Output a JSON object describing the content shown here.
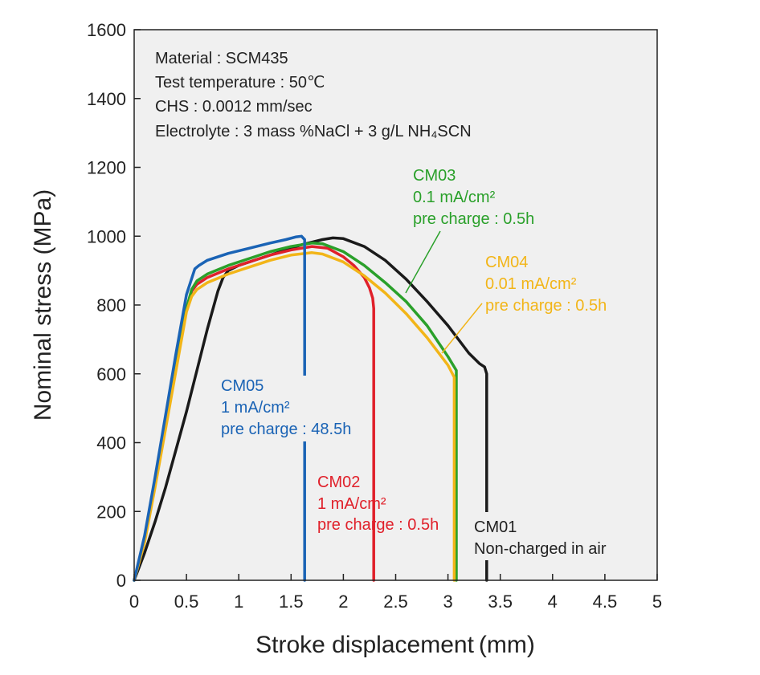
{
  "chart_data": {
    "type": "line",
    "xlabel": "Stroke displacement (mm)",
    "ylabel": "Nominal stress (MPa)",
    "xlim": [
      0,
      5
    ],
    "ylim": [
      0,
      1600
    ],
    "xticks": [
      0,
      0.5,
      1,
      1.5,
      2,
      2.5,
      3,
      3.5,
      4,
      4.5,
      5
    ],
    "xtick_labels": [
      "0",
      "0.5",
      "1",
      "1.5",
      "2",
      "2.5",
      "3",
      "3.5",
      "4",
      "4.5",
      "5"
    ],
    "yticks": [
      0,
      200,
      400,
      600,
      800,
      1000,
      1200,
      1400,
      1600
    ],
    "ytick_labels": [
      "0",
      "200",
      "400",
      "600",
      "800",
      "1000",
      "1200",
      "1400",
      "1600"
    ],
    "grid": false,
    "info_lines": [
      "Material : SCM435",
      "Test temperature : 50℃",
      "CHS : 0.0012 mm/sec",
      "Electrolyte : 3 mass %NaCl + 3 g/L NH₄SCN"
    ],
    "series": [
      {
        "name": "CM01",
        "label_lines": [
          "CM01",
          "Non-charged in air"
        ],
        "color": "#1a1a1a",
        "x": [
          0,
          0.1,
          0.2,
          0.3,
          0.4,
          0.5,
          0.6,
          0.7,
          0.8,
          0.85,
          0.9,
          1.0,
          1.2,
          1.4,
          1.6,
          1.8,
          1.9,
          2.0,
          2.2,
          2.4,
          2.6,
          2.8,
          3.0,
          3.2,
          3.3,
          3.35,
          3.37,
          3.37
        ],
        "y": [
          0,
          80,
          170,
          270,
          380,
          490,
          610,
          730,
          840,
          880,
          900,
          915,
          935,
          955,
          975,
          990,
          995,
          993,
          970,
          930,
          875,
          810,
          740,
          660,
          630,
          620,
          600,
          0
        ]
      },
      {
        "name": "CM02",
        "label_lines": [
          "CM02",
          "1 mA/cm²",
          "pre charge : 0.5h"
        ],
        "color": "#e0202a",
        "x": [
          0,
          0.1,
          0.2,
          0.3,
          0.4,
          0.5,
          0.55,
          0.6,
          0.7,
          0.9,
          1.1,
          1.3,
          1.5,
          1.7,
          1.85,
          2.0,
          2.1,
          2.2,
          2.25,
          2.28,
          2.29,
          2.29
        ],
        "y": [
          0,
          120,
          280,
          450,
          620,
          790,
          840,
          860,
          880,
          905,
          925,
          945,
          960,
          970,
          965,
          940,
          915,
          880,
          850,
          820,
          790,
          0
        ]
      },
      {
        "name": "CM03",
        "label_lines": [
          "CM03",
          "0.1 mA/cm²",
          "pre charge : 0.5h"
        ],
        "color": "#2aa02a",
        "x": [
          0,
          0.1,
          0.2,
          0.3,
          0.4,
          0.5,
          0.55,
          0.6,
          0.7,
          0.9,
          1.1,
          1.3,
          1.5,
          1.7,
          1.8,
          2.0,
          2.2,
          2.4,
          2.6,
          2.8,
          3.0,
          3.08,
          3.08
        ],
        "y": [
          0,
          120,
          280,
          450,
          620,
          790,
          845,
          870,
          890,
          915,
          935,
          955,
          970,
          980,
          978,
          955,
          915,
          865,
          810,
          740,
          650,
          610,
          0
        ]
      },
      {
        "name": "CM04",
        "label_lines": [
          "CM04",
          "0.01 mA/cm²",
          "pre charge : 0.5h"
        ],
        "color": "#f2b518",
        "x": [
          0,
          0.1,
          0.2,
          0.3,
          0.4,
          0.5,
          0.55,
          0.6,
          0.7,
          0.9,
          1.1,
          1.3,
          1.5,
          1.7,
          1.8,
          2.0,
          2.2,
          2.4,
          2.6,
          2.8,
          3.0,
          3.06,
          3.06
        ],
        "y": [
          0,
          110,
          270,
          440,
          610,
          780,
          825,
          845,
          865,
          890,
          910,
          930,
          945,
          952,
          948,
          925,
          885,
          835,
          775,
          705,
          625,
          590,
          0
        ]
      },
      {
        "name": "CM05",
        "label_lines": [
          "CM05",
          "1 mA/cm²",
          "pre charge : 48.5h"
        ],
        "color": "#1a63b5",
        "x": [
          0,
          0.1,
          0.2,
          0.3,
          0.4,
          0.5,
          0.58,
          0.62,
          0.7,
          0.9,
          1.1,
          1.3,
          1.45,
          1.55,
          1.6,
          1.63,
          1.63
        ],
        "y": [
          0,
          130,
          300,
          480,
          660,
          830,
          905,
          915,
          930,
          950,
          965,
          980,
          990,
          998,
          1000,
          990,
          0
        ]
      }
    ]
  }
}
